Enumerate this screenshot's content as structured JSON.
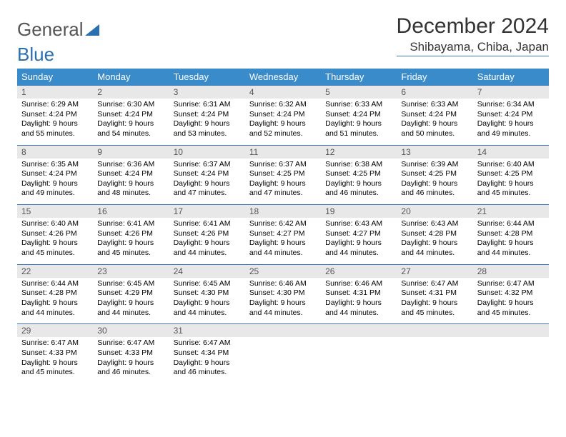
{
  "logo": {
    "word1": "General",
    "word2": "Blue",
    "gray": "#777777",
    "blue": "#2a6fb0"
  },
  "title": "December 2024",
  "location": "Shibayama, Chiba, Japan",
  "header_bg": "#3a8bc9",
  "header_fg": "#ffffff",
  "rule_color": "#3a7ab8",
  "daynum_bg": "#e8e8e8",
  "daynum_fg": "#555555",
  "weekdays": [
    "Sunday",
    "Monday",
    "Tuesday",
    "Wednesday",
    "Thursday",
    "Friday",
    "Saturday"
  ],
  "weeks": [
    [
      {
        "n": "1",
        "sr": "6:29 AM",
        "ss": "4:24 PM",
        "dl": "9 hours and 55 minutes."
      },
      {
        "n": "2",
        "sr": "6:30 AM",
        "ss": "4:24 PM",
        "dl": "9 hours and 54 minutes."
      },
      {
        "n": "3",
        "sr": "6:31 AM",
        "ss": "4:24 PM",
        "dl": "9 hours and 53 minutes."
      },
      {
        "n": "4",
        "sr": "6:32 AM",
        "ss": "4:24 PM",
        "dl": "9 hours and 52 minutes."
      },
      {
        "n": "5",
        "sr": "6:33 AM",
        "ss": "4:24 PM",
        "dl": "9 hours and 51 minutes."
      },
      {
        "n": "6",
        "sr": "6:33 AM",
        "ss": "4:24 PM",
        "dl": "9 hours and 50 minutes."
      },
      {
        "n": "7",
        "sr": "6:34 AM",
        "ss": "4:24 PM",
        "dl": "9 hours and 49 minutes."
      }
    ],
    [
      {
        "n": "8",
        "sr": "6:35 AM",
        "ss": "4:24 PM",
        "dl": "9 hours and 49 minutes."
      },
      {
        "n": "9",
        "sr": "6:36 AM",
        "ss": "4:24 PM",
        "dl": "9 hours and 48 minutes."
      },
      {
        "n": "10",
        "sr": "6:37 AM",
        "ss": "4:24 PM",
        "dl": "9 hours and 47 minutes."
      },
      {
        "n": "11",
        "sr": "6:37 AM",
        "ss": "4:25 PM",
        "dl": "9 hours and 47 minutes."
      },
      {
        "n": "12",
        "sr": "6:38 AM",
        "ss": "4:25 PM",
        "dl": "9 hours and 46 minutes."
      },
      {
        "n": "13",
        "sr": "6:39 AM",
        "ss": "4:25 PM",
        "dl": "9 hours and 46 minutes."
      },
      {
        "n": "14",
        "sr": "6:40 AM",
        "ss": "4:25 PM",
        "dl": "9 hours and 45 minutes."
      }
    ],
    [
      {
        "n": "15",
        "sr": "6:40 AM",
        "ss": "4:26 PM",
        "dl": "9 hours and 45 minutes."
      },
      {
        "n": "16",
        "sr": "6:41 AM",
        "ss": "4:26 PM",
        "dl": "9 hours and 45 minutes."
      },
      {
        "n": "17",
        "sr": "6:41 AM",
        "ss": "4:26 PM",
        "dl": "9 hours and 44 minutes."
      },
      {
        "n": "18",
        "sr": "6:42 AM",
        "ss": "4:27 PM",
        "dl": "9 hours and 44 minutes."
      },
      {
        "n": "19",
        "sr": "6:43 AM",
        "ss": "4:27 PM",
        "dl": "9 hours and 44 minutes."
      },
      {
        "n": "20",
        "sr": "6:43 AM",
        "ss": "4:28 PM",
        "dl": "9 hours and 44 minutes."
      },
      {
        "n": "21",
        "sr": "6:44 AM",
        "ss": "4:28 PM",
        "dl": "9 hours and 44 minutes."
      }
    ],
    [
      {
        "n": "22",
        "sr": "6:44 AM",
        "ss": "4:28 PM",
        "dl": "9 hours and 44 minutes."
      },
      {
        "n": "23",
        "sr": "6:45 AM",
        "ss": "4:29 PM",
        "dl": "9 hours and 44 minutes."
      },
      {
        "n": "24",
        "sr": "6:45 AM",
        "ss": "4:30 PM",
        "dl": "9 hours and 44 minutes."
      },
      {
        "n": "25",
        "sr": "6:46 AM",
        "ss": "4:30 PM",
        "dl": "9 hours and 44 minutes."
      },
      {
        "n": "26",
        "sr": "6:46 AM",
        "ss": "4:31 PM",
        "dl": "9 hours and 44 minutes."
      },
      {
        "n": "27",
        "sr": "6:47 AM",
        "ss": "4:31 PM",
        "dl": "9 hours and 45 minutes."
      },
      {
        "n": "28",
        "sr": "6:47 AM",
        "ss": "4:32 PM",
        "dl": "9 hours and 45 minutes."
      }
    ],
    [
      {
        "n": "29",
        "sr": "6:47 AM",
        "ss": "4:33 PM",
        "dl": "9 hours and 45 minutes."
      },
      {
        "n": "30",
        "sr": "6:47 AM",
        "ss": "4:33 PM",
        "dl": "9 hours and 46 minutes."
      },
      {
        "n": "31",
        "sr": "6:47 AM",
        "ss": "4:34 PM",
        "dl": "9 hours and 46 minutes."
      },
      {
        "n": "",
        "sr": "",
        "ss": "",
        "dl": ""
      },
      {
        "n": "",
        "sr": "",
        "ss": "",
        "dl": ""
      },
      {
        "n": "",
        "sr": "",
        "ss": "",
        "dl": ""
      },
      {
        "n": "",
        "sr": "",
        "ss": "",
        "dl": ""
      }
    ]
  ],
  "labels": {
    "sunrise": "Sunrise:",
    "sunset": "Sunset:",
    "daylight": "Daylight:"
  }
}
